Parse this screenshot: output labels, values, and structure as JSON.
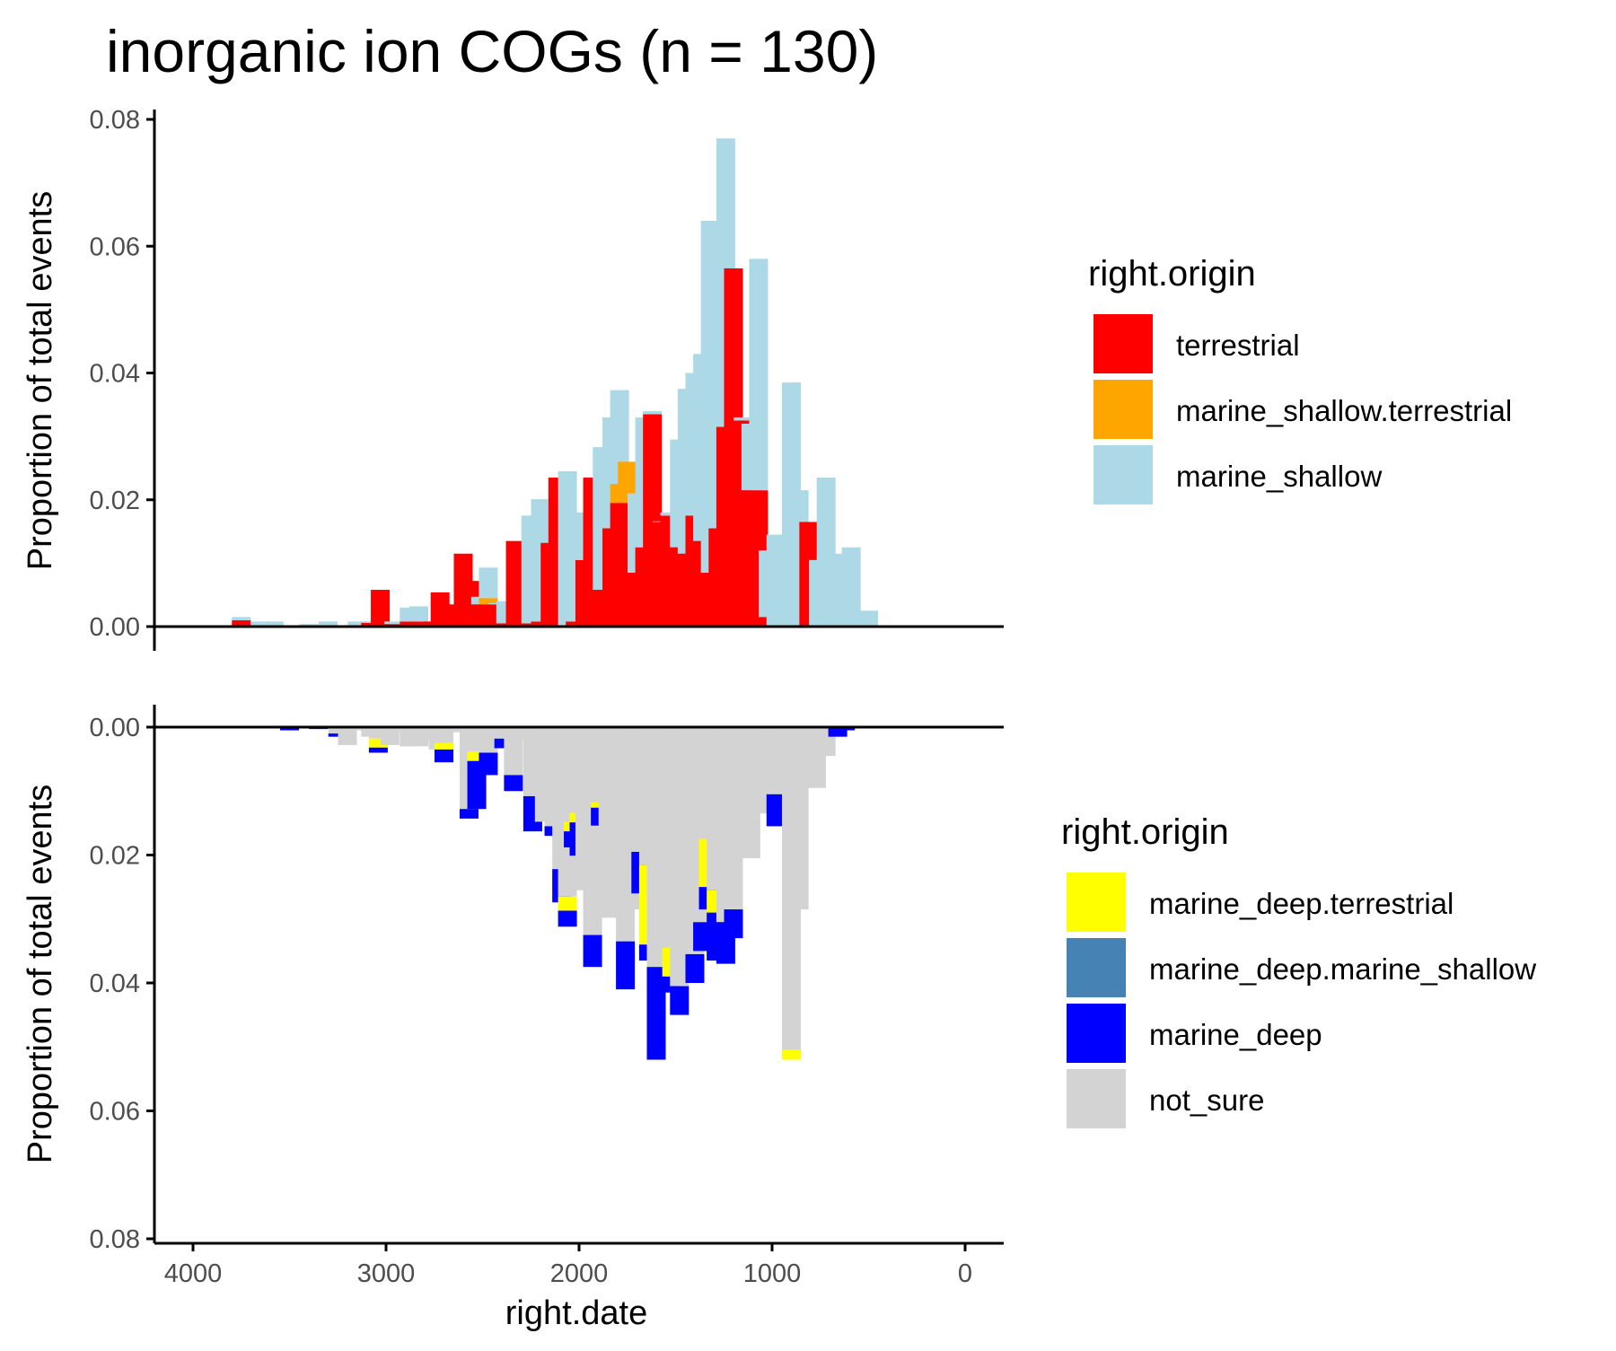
{
  "chart_data": {
    "title": "inorganic ion COGs (n = 130)",
    "type": "bar",
    "bin_width": 21,
    "x_axis": {
      "label": "right.date",
      "ticks": [
        4000,
        3000,
        2000,
        1000,
        0
      ],
      "range": [
        4200,
        -200
      ],
      "reversed": true
    },
    "panels": [
      {
        "name": "top",
        "y_axis": {
          "label": "Proportion of total events",
          "range": [
            0,
            0.08
          ],
          "ticks": [
            0.0,
            0.02,
            0.04,
            0.06,
            0.08
          ],
          "tick_labels": [
            "0.00",
            "0.02",
            "0.04",
            "0.06",
            "0.08"
          ]
        },
        "legend": {
          "title": "right.origin",
          "entries": [
            {
              "label": "terrestrial",
              "color": "#ff0000"
            },
            {
              "label": "marine_shallow.terrestrial",
              "color": "#ffa500"
            },
            {
              "label": "marine_shallow",
              "color": "#add8e6"
            }
          ]
        },
        "bars": [
          {
            "x": 3750,
            "red": 0.001,
            "blue": 0.0005
          },
          {
            "x": 3650,
            "blue": 0.0008
          },
          {
            "x": 3580,
            "blue": 0.0008
          },
          {
            "x": 3400,
            "red": 0.0002,
            "blue": 0.0002
          },
          {
            "x": 3300,
            "blue": 0.0008
          },
          {
            "x": 3150,
            "blue": 0.0008
          },
          {
            "x": 3080,
            "red": 0.0006,
            "blue": 0.0002
          },
          {
            "x": 3030,
            "red": 0.0058
          },
          {
            "x": 2960,
            "red": 0.0004,
            "blue": 0.0004
          },
          {
            "x": 2880,
            "red": 0.0008,
            "blue": 0.0022
          },
          {
            "x": 2830,
            "red": 0.0008,
            "blue": 0.0024
          },
          {
            "x": 2760,
            "red": 0.0008
          },
          {
            "x": 2720,
            "red": 0.0054
          },
          {
            "x": 2650,
            "red": 0.0035
          },
          {
            "x": 2600,
            "red": 0.0115
          },
          {
            "x": 2550,
            "red": 0.0072
          },
          {
            "x": 2510,
            "red": 0.0035,
            "blue": 0.0012
          },
          {
            "x": 2470,
            "red": 0.0035,
            "orange": 0.001,
            "blue": 0.0048
          },
          {
            "x": 2420,
            "red": 0.0035,
            "blue": 0.0002
          },
          {
            "x": 2380,
            "red": 0.0005,
            "blue": 0.0035
          },
          {
            "x": 2330,
            "red": 0.0135
          },
          {
            "x": 2250,
            "red": 0.0005,
            "blue": 0.017
          },
          {
            "x": 2200,
            "red": 0.0008,
            "blue": 0.0193
          },
          {
            "x": 2150,
            "red": 0.0132
          },
          {
            "x": 2110,
            "red": 0.0235
          },
          {
            "x": 2060,
            "blue": 0.0245
          },
          {
            "x": 2020,
            "red": 0.0008,
            "blue": 0.0098
          },
          {
            "x": 1970,
            "red": 0.0105,
            "blue": 0.0075
          },
          {
            "x": 1930,
            "red": 0.0235
          },
          {
            "x": 1880,
            "red": 0.0058,
            "blue": 0.0225
          },
          {
            "x": 1830,
            "red": 0.0155,
            "blue": 0.0175
          },
          {
            "x": 1790,
            "red": 0.0195,
            "orange": 0.003,
            "blue": 0.0148
          },
          {
            "x": 1750,
            "red": 0.0195,
            "orange": 0.0065
          },
          {
            "x": 1700,
            "red": 0.0085,
            "blue": 0.0125
          },
          {
            "x": 1660,
            "red": 0.0125,
            "blue": 0.0205
          },
          {
            "x": 1620,
            "red": 0.0335,
            "blue": 0.0005
          },
          {
            "x": 1570,
            "red": 0.0165,
            "blue": 0.0001
          },
          {
            "x": 1530,
            "red": 0.0175,
            "blue": 0.0005
          },
          {
            "x": 1480,
            "red": 0.0125,
            "blue": 0.017
          },
          {
            "x": 1440,
            "red": 0.0115,
            "blue": 0.026
          },
          {
            "x": 1400,
            "red": 0.0175,
            "blue": 0.0225
          },
          {
            "x": 1360,
            "red": 0.0135,
            "blue": 0.0295
          },
          {
            "x": 1320,
            "red": 0.0085,
            "blue": 0.0555
          },
          {
            "x": 1280,
            "red": 0.0155,
            "blue": 0.0485
          },
          {
            "x": 1240,
            "red": 0.0315,
            "blue": 0.0455
          },
          {
            "x": 1200,
            "red": 0.0565
          },
          {
            "x": 1150,
            "red": 0.0325,
            "blue": 0.0005
          },
          {
            "x": 1110,
            "red": 0.0215,
            "blue": 0.0105
          },
          {
            "x": 1070,
            "red": 0.0215,
            "blue": 0.0365
          },
          {
            "x": 1020,
            "red": 0.0015,
            "blue": 0.0105
          },
          {
            "x": 980,
            "blue": 0.0145
          },
          {
            "x": 940,
            "blue": 0.0085
          },
          {
            "x": 900,
            "blue": 0.0385
          },
          {
            "x": 860,
            "blue": 0.0215
          },
          {
            "x": 810,
            "red": 0.0165
          },
          {
            "x": 760,
            "blue": 0.0105
          },
          {
            "x": 720,
            "blue": 0.0235
          },
          {
            "x": 680,
            "blue": 0.0095
          },
          {
            "x": 630,
            "blue": 0.0115
          },
          {
            "x": 590,
            "blue": 0.0125
          },
          {
            "x": 550,
            "blue": 0.0025
          },
          {
            "x": 500,
            "blue": 0.0025
          }
        ]
      },
      {
        "name": "bottom",
        "y_axis": {
          "label": "Proportion of total events",
          "range": [
            0,
            0.08
          ],
          "ticks": [
            0.0,
            0.02,
            0.04,
            0.06,
            0.08
          ],
          "tick_labels": [
            "0.00",
            "0.02",
            "0.04",
            "0.06",
            "0.08"
          ],
          "reversed": true
        },
        "legend": {
          "title": "right.origin",
          "entries": [
            {
              "label": "marine_deep.terrestrial",
              "color": "#ffff00"
            },
            {
              "label": "marine_deep.marine_shallow",
              "color": "#4682b4"
            },
            {
              "label": "marine_deep",
              "color": "#0000ff"
            },
            {
              "label": "not_sure",
              "color": "#d3d3d3"
            }
          ]
        },
        "bars": [
          {
            "x": 3500,
            "blue": 0.0005
          },
          {
            "x": 3350,
            "grey": 0.0001,
            "blue": 0.0002
          },
          {
            "x": 3250,
            "grey": 0.001,
            "blue": 0.0005
          },
          {
            "x": 3200,
            "grey": 0.0028
          },
          {
            "x": 3150,
            "grey": 0.0005
          },
          {
            "x": 3080,
            "grey": 0.0015
          },
          {
            "x": 3040,
            "grey": 0.0018,
            "yellow": 0.0014,
            "blue": 0.0008
          },
          {
            "x": 2980,
            "grey": 0.0028
          },
          {
            "x": 2940,
            "grey": 0.0005
          },
          {
            "x": 2880,
            "grey": 0.003
          },
          {
            "x": 2830,
            "grey": 0.003
          },
          {
            "x": 2770,
            "grey": 0.0022
          },
          {
            "x": 2730,
            "grey": 0.0035
          },
          {
            "x": 2700,
            "grey": 0.0025,
            "yellow": 0.001,
            "blue": 0.002
          },
          {
            "x": 2620,
            "grey": 0.0008
          },
          {
            "x": 2570,
            "grey": 0.0128,
            "blue": 0.0015
          },
          {
            "x": 2530,
            "grey": 0.0038,
            "yellow": 0.0015,
            "blue": 0.0075
          },
          {
            "x": 2470,
            "grey": 0.004,
            "blue": 0.0035
          },
          {
            "x": 2430,
            "grey": 0.0005
          },
          {
            "x": 2390,
            "grey": 0.0018,
            "blue": 0.0015
          },
          {
            "x": 2340,
            "grey": 0.0075,
            "blue": 0.0025
          },
          {
            "x": 2290,
            "grey": 0.002
          },
          {
            "x": 2240,
            "grey": 0.0108,
            "blue": 0.0055
          },
          {
            "x": 2180,
            "grey": 0.0148
          },
          {
            "x": 2130,
            "grey": 0.0155,
            "blue": 0.0015
          },
          {
            "x": 2090,
            "grey": 0.0222,
            "blue": 0.0052
          },
          {
            "x": 2060,
            "grey": 0.0265,
            "yellow": 0.0022,
            "blue": 0.0025
          },
          {
            "x": 2030,
            "grey": 0.0148,
            "yellow": 0.0015,
            "blue": 0.0025
          },
          {
            "x": 2000,
            "grey": 0.0134,
            "yellow": 0.0015,
            "blue": 0.0052
          },
          {
            "x": 1970,
            "grey": 0.0255
          },
          {
            "x": 1930,
            "grey": 0.0325,
            "blue": 0.005
          },
          {
            "x": 1890,
            "grey": 0.0118,
            "yellow": 0.0008,
            "blue": 0.0028
          },
          {
            "x": 1850,
            "grey": 0.0298
          },
          {
            "x": 1800,
            "grey": 0.0288
          },
          {
            "x": 1760,
            "grey": 0.0335,
            "blue": 0.0075
          },
          {
            "x": 1720,
            "grey": 0.0285
          },
          {
            "x": 1680,
            "grey": 0.0195,
            "blue": 0.0065
          },
          {
            "x": 1640,
            "grey": 0.0215,
            "yellow": 0.0125,
            "blue": 0.0025
          },
          {
            "x": 1600,
            "grey": 0.0375,
            "blue": 0.0145
          },
          {
            "x": 1560,
            "grey": 0.0285
          },
          {
            "x": 1520,
            "grey": 0.0345,
            "yellow": 0.0045,
            "blue": 0.0025
          },
          {
            "x": 1480,
            "grey": 0.0405,
            "blue": 0.0045
          },
          {
            "x": 1440,
            "grey": 0.0265
          },
          {
            "x": 1400,
            "grey": 0.0355,
            "blue": 0.0045
          },
          {
            "x": 1360,
            "grey": 0.0305,
            "blue": 0.0045
          },
          {
            "x": 1330,
            "grey": 0.0175,
            "yellow": 0.0075,
            "blue": 0.0035
          },
          {
            "x": 1290,
            "grey": 0.0255,
            "yellow": 0.0035,
            "blue": 0.0075
          },
          {
            "x": 1240,
            "grey": 0.0305,
            "blue": 0.0065
          },
          {
            "x": 1200,
            "grey": 0.0285,
            "blue": 0.0045
          },
          {
            "x": 1150,
            "grey": 0.0195
          },
          {
            "x": 1110,
            "grey": 0.0205
          },
          {
            "x": 1060,
            "grey": 0.0135
          },
          {
            "x": 1020,
            "grey": 0.0095
          },
          {
            "x": 980,
            "grey": 0.0105,
            "blue": 0.005
          },
          {
            "x": 940,
            "grey": 0.0095
          },
          {
            "x": 900,
            "grey": 0.0505,
            "yellow": 0.0015
          },
          {
            "x": 860,
            "grey": 0.0285
          },
          {
            "x": 810,
            "grey": 0.0095
          },
          {
            "x": 770,
            "grey": 0.0095
          },
          {
            "x": 720,
            "grey": 0.0045
          },
          {
            "x": 660,
            "blue": 0.0015
          },
          {
            "x": 620,
            "blue": 0.0005
          }
        ]
      }
    ]
  }
}
